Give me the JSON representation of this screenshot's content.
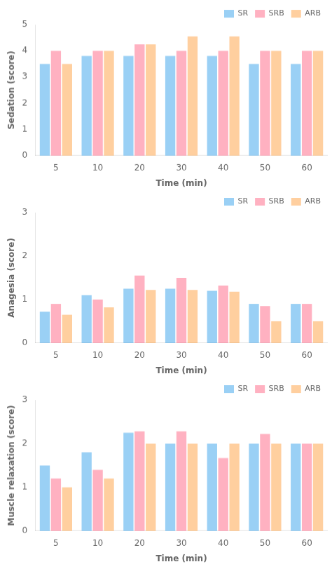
{
  "chart_data": [
    {
      "type": "bar",
      "categories": [
        "5",
        "10",
        "20",
        "30",
        "40",
        "50",
        "60"
      ],
      "series": [
        {
          "name": "SR",
          "values": [
            3.5,
            3.8,
            3.8,
            3.8,
            3.8,
            3.5,
            3.5
          ]
        },
        {
          "name": "SRB",
          "values": [
            4.0,
            4.0,
            4.25,
            4.0,
            4.0,
            4.0,
            4.0
          ]
        },
        {
          "name": "ARB",
          "values": [
            3.5,
            4.0,
            4.25,
            4.55,
            4.55,
            4.0,
            4.0
          ]
        }
      ],
      "xlabel": "Time (min)",
      "ylabel": "Sedation (score)",
      "ylim": [
        0,
        5
      ],
      "yticks": [
        0,
        1,
        2,
        3,
        4,
        5
      ],
      "grid": false,
      "legend": "upper right"
    },
    {
      "type": "bar",
      "categories": [
        "5",
        "10",
        "20",
        "30",
        "40",
        "50",
        "60"
      ],
      "series": [
        {
          "name": "SR",
          "values": [
            0.72,
            1.1,
            1.25,
            1.25,
            1.2,
            0.9,
            0.9
          ]
        },
        {
          "name": "SRB",
          "values": [
            0.9,
            1.0,
            1.55,
            1.5,
            1.32,
            0.85,
            0.9
          ]
        },
        {
          "name": "ARB",
          "values": [
            0.65,
            0.82,
            1.22,
            1.22,
            1.18,
            0.5,
            0.5
          ]
        }
      ],
      "xlabel": "Time (min)",
      "ylabel": "Anagesia (score)",
      "ylim": [
        0,
        3
      ],
      "yticks": [
        0,
        1,
        2,
        3
      ],
      "grid": false,
      "legend": "upper right"
    },
    {
      "type": "bar",
      "categories": [
        "5",
        "10",
        "20",
        "30",
        "40",
        "50",
        "60"
      ],
      "series": [
        {
          "name": "SR",
          "values": [
            1.5,
            1.8,
            2.25,
            2.0,
            2.0,
            2.0,
            2.0
          ]
        },
        {
          "name": "SRB",
          "values": [
            1.2,
            1.4,
            2.28,
            2.28,
            1.67,
            2.22,
            2.0
          ]
        },
        {
          "name": "ARB",
          "values": [
            1.0,
            1.2,
            2.0,
            2.0,
            2.0,
            2.0,
            2.0
          ]
        }
      ],
      "xlabel": "Time (min)",
      "ylabel": "Muscle relaxation (score)",
      "ylim": [
        0,
        3
      ],
      "yticks": [
        0,
        1,
        2,
        3
      ],
      "grid": false,
      "legend": "upper right"
    }
  ]
}
